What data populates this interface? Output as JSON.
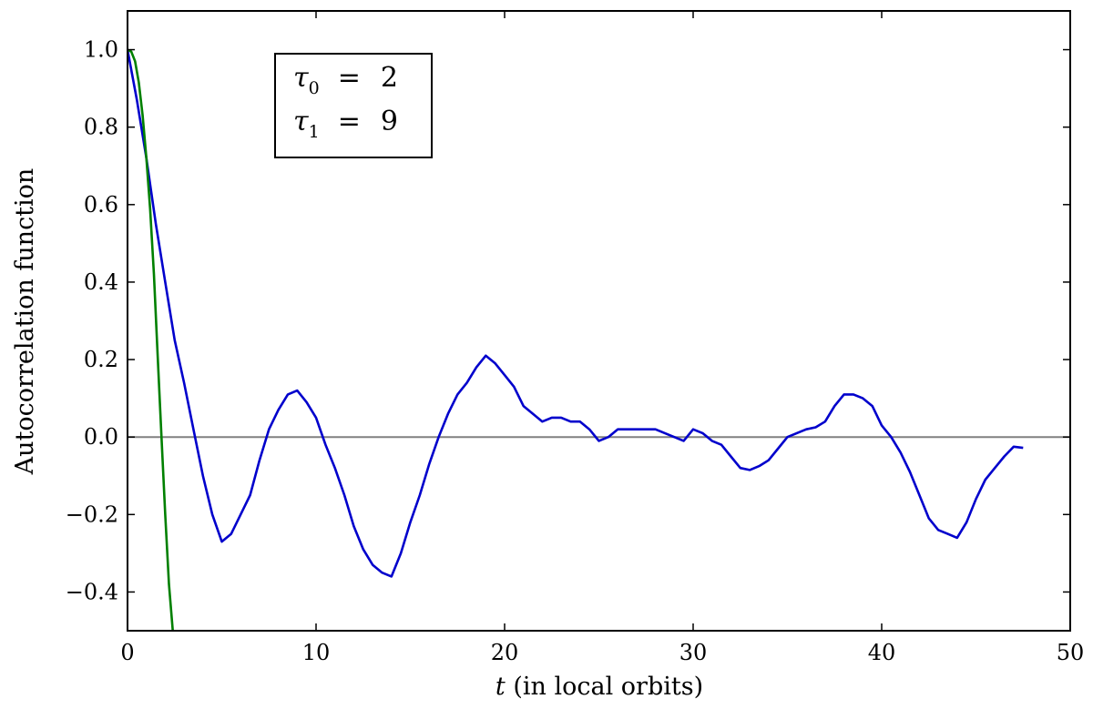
{
  "chart_data": {
    "type": "line",
    "xlabel_var": "t",
    "xlabel_rest": " (in local orbits)",
    "ylabel": "Autocorrelation function",
    "xlim": [
      0,
      50
    ],
    "ylim": [
      -0.5,
      1.1
    ],
    "xticks": [
      0,
      10,
      20,
      30,
      40,
      50
    ],
    "xtick_labels": [
      "0",
      "10",
      "20",
      "30",
      "40",
      "50"
    ],
    "yticks": [
      -0.4,
      -0.2,
      0.0,
      0.2,
      0.4,
      0.6,
      0.8,
      1.0
    ],
    "ytick_labels": [
      "−0.4",
      "−0.2",
      "0.0",
      "0.2",
      "0.4",
      "0.6",
      "0.8",
      "1.0"
    ],
    "annotation": {
      "lines": [
        {
          "symbol": "τ",
          "sub": "0",
          "value": "2"
        },
        {
          "symbol": "τ",
          "sub": "1",
          "value": "9"
        }
      ]
    },
    "reference_line": {
      "y": 0.0,
      "color": "#808080"
    },
    "series": [
      {
        "color": "#0000cc",
        "x": [
          0,
          0.5,
          1,
          1.5,
          2,
          2.5,
          3,
          3.5,
          4,
          4.5,
          5,
          5.5,
          6,
          6.5,
          7,
          7.5,
          8,
          8.5,
          9,
          9.5,
          10,
          10.5,
          11,
          11.5,
          12,
          12.5,
          13,
          13.5,
          14,
          14.5,
          15,
          15.5,
          16,
          16.5,
          17,
          17.5,
          18,
          18.5,
          19,
          19.5,
          20,
          20.5,
          21,
          21.5,
          22,
          22.5,
          23,
          23.5,
          24,
          24.5,
          25,
          25.5,
          26,
          26.5,
          27,
          27.5,
          28,
          28.5,
          29,
          29.5,
          30,
          30.5,
          31,
          31.5,
          32,
          32.5,
          33,
          33.5,
          34,
          34.5,
          35,
          35.5,
          36,
          36.5,
          37,
          37.5,
          38,
          38.5,
          39,
          39.5,
          40,
          40.5,
          41,
          41.5,
          42,
          42.5,
          43,
          43.5,
          44,
          44.5,
          45,
          45.5,
          46,
          46.5,
          47,
          47.5
        ],
        "y": [
          1.0,
          0.87,
          0.72,
          0.55,
          0.4,
          0.25,
          0.14,
          0.02,
          -0.1,
          -0.2,
          -0.27,
          -0.25,
          -0.2,
          -0.15,
          -0.06,
          0.02,
          0.07,
          0.11,
          0.12,
          0.09,
          0.05,
          -0.02,
          -0.08,
          -0.15,
          -0.23,
          -0.29,
          -0.33,
          -0.35,
          -0.36,
          -0.3,
          -0.22,
          -0.15,
          -0.07,
          0.0,
          0.06,
          0.11,
          0.14,
          0.18,
          0.21,
          0.19,
          0.16,
          0.13,
          0.08,
          0.06,
          0.04,
          0.05,
          0.05,
          0.04,
          0.04,
          0.02,
          -0.01,
          0.0,
          0.02,
          0.02,
          0.02,
          0.02,
          0.02,
          0.01,
          0.0,
          -0.01,
          0.02,
          0.01,
          -0.01,
          -0.02,
          -0.05,
          -0.08,
          -0.085,
          -0.075,
          -0.06,
          -0.03,
          0.0,
          0.01,
          0.02,
          0.025,
          0.04,
          0.08,
          0.11,
          0.11,
          0.1,
          0.08,
          0.03,
          0.0,
          -0.04,
          -0.09,
          -0.15,
          -0.21,
          -0.24,
          -0.25,
          -0.26,
          -0.22,
          -0.16,
          -0.11,
          -0.08,
          -0.05,
          -0.025,
          -0.028
        ]
      },
      {
        "color": "#008000",
        "x": [
          0,
          0.2,
          0.4,
          0.6,
          0.8,
          1.0,
          1.2,
          1.4,
          1.6,
          1.8,
          2.0,
          2.2,
          2.4
        ],
        "y": [
          1.0,
          0.995,
          0.97,
          0.915,
          0.83,
          0.72,
          0.59,
          0.42,
          0.21,
          0.0,
          -0.2,
          -0.38,
          -0.5
        ]
      }
    ]
  }
}
